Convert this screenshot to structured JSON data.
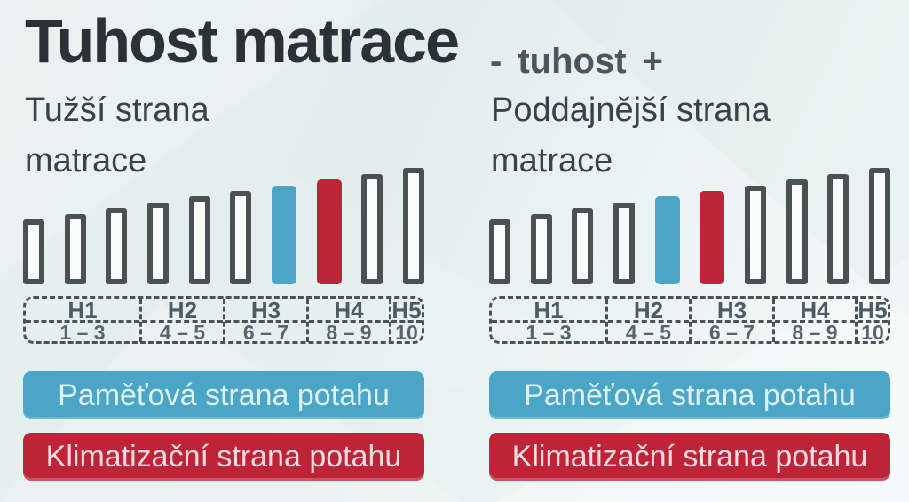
{
  "header": {
    "title": "Tuhost matrace",
    "hint": {
      "minus": "-",
      "label": "tuhost",
      "plus": "+"
    }
  },
  "panels": [
    {
      "heading_line1": "Tužší strana",
      "heading_line2": "matrace",
      "memory_position": 7,
      "climate_position": 8
    },
    {
      "heading_line1": "Poddajnější strana",
      "heading_line2": "matrace",
      "memory_position": 5,
      "climate_position": 6
    }
  ],
  "scale": {
    "grades": [
      {
        "label": "H1",
        "range": "1 – 3"
      },
      {
        "label": "H2",
        "range": "4 – 5"
      },
      {
        "label": "H3",
        "range": "6 – 7"
      },
      {
        "label": "H4",
        "range": "8 – 9"
      },
      {
        "label": "H5",
        "range": "10"
      }
    ]
  },
  "legend": {
    "memory_label": "Paměťová strana potahu",
    "climate_label": "Klimatizační strana potahu"
  },
  "colors": {
    "background": "#e4f0ee",
    "title": "#2c3137",
    "hint": "#4d555c",
    "heading": "#39424a",
    "bar_outline": "#4b5054",
    "bar_slot": "#f8fcfb",
    "memory_blue": "#4ba5c6",
    "climate_red": "#bf2337",
    "dash": "#4a5157",
    "grade_label": "#4d5b66",
    "grade_range": "#57636e",
    "button_blue_text": "#def1f8",
    "button_red_text": "#f8dce1"
  },
  "chart_data": [
    {
      "type": "bar",
      "title": "Tužší strana matrace",
      "x": [
        1,
        2,
        3,
        4,
        5,
        6,
        7,
        8,
        9,
        10
      ],
      "values": [
        1,
        2,
        3,
        4,
        5,
        6,
        7,
        8,
        9,
        10
      ],
      "ylim": [
        0,
        10
      ],
      "grid": false,
      "legend_position": "bottom",
      "x_groups": [
        {
          "label": "H1",
          "range": "1 – 3"
        },
        {
          "label": "H2",
          "range": "4 – 5"
        },
        {
          "label": "H3",
          "range": "6 – 7"
        },
        {
          "label": "H4",
          "range": "8 – 9"
        },
        {
          "label": "H5",
          "range": "10"
        }
      ],
      "highlighted_bars": [
        {
          "series": "Paměťová strana potahu",
          "x": 7,
          "color": "#4ba5c6"
        },
        {
          "series": "Klimatizační strana potahu",
          "x": 8,
          "color": "#bf2337"
        }
      ]
    },
    {
      "type": "bar",
      "title": "Poddajnější strana matrace",
      "x": [
        1,
        2,
        3,
        4,
        5,
        6,
        7,
        8,
        9,
        10
      ],
      "values": [
        1,
        2,
        3,
        4,
        5,
        6,
        7,
        8,
        9,
        10
      ],
      "ylim": [
        0,
        10
      ],
      "grid": false,
      "legend_position": "bottom",
      "x_groups": [
        {
          "label": "H1",
          "range": "1 – 3"
        },
        {
          "label": "H2",
          "range": "4 – 5"
        },
        {
          "label": "H3",
          "range": "6 – 7"
        },
        {
          "label": "H4",
          "range": "8 – 9"
        },
        {
          "label": "H5",
          "range": "10"
        }
      ],
      "highlighted_bars": [
        {
          "series": "Paměťová strana potahu",
          "x": 5,
          "color": "#4ba5c6"
        },
        {
          "series": "Klimatizační strana potahu",
          "x": 6,
          "color": "#bf2337"
        }
      ]
    }
  ]
}
